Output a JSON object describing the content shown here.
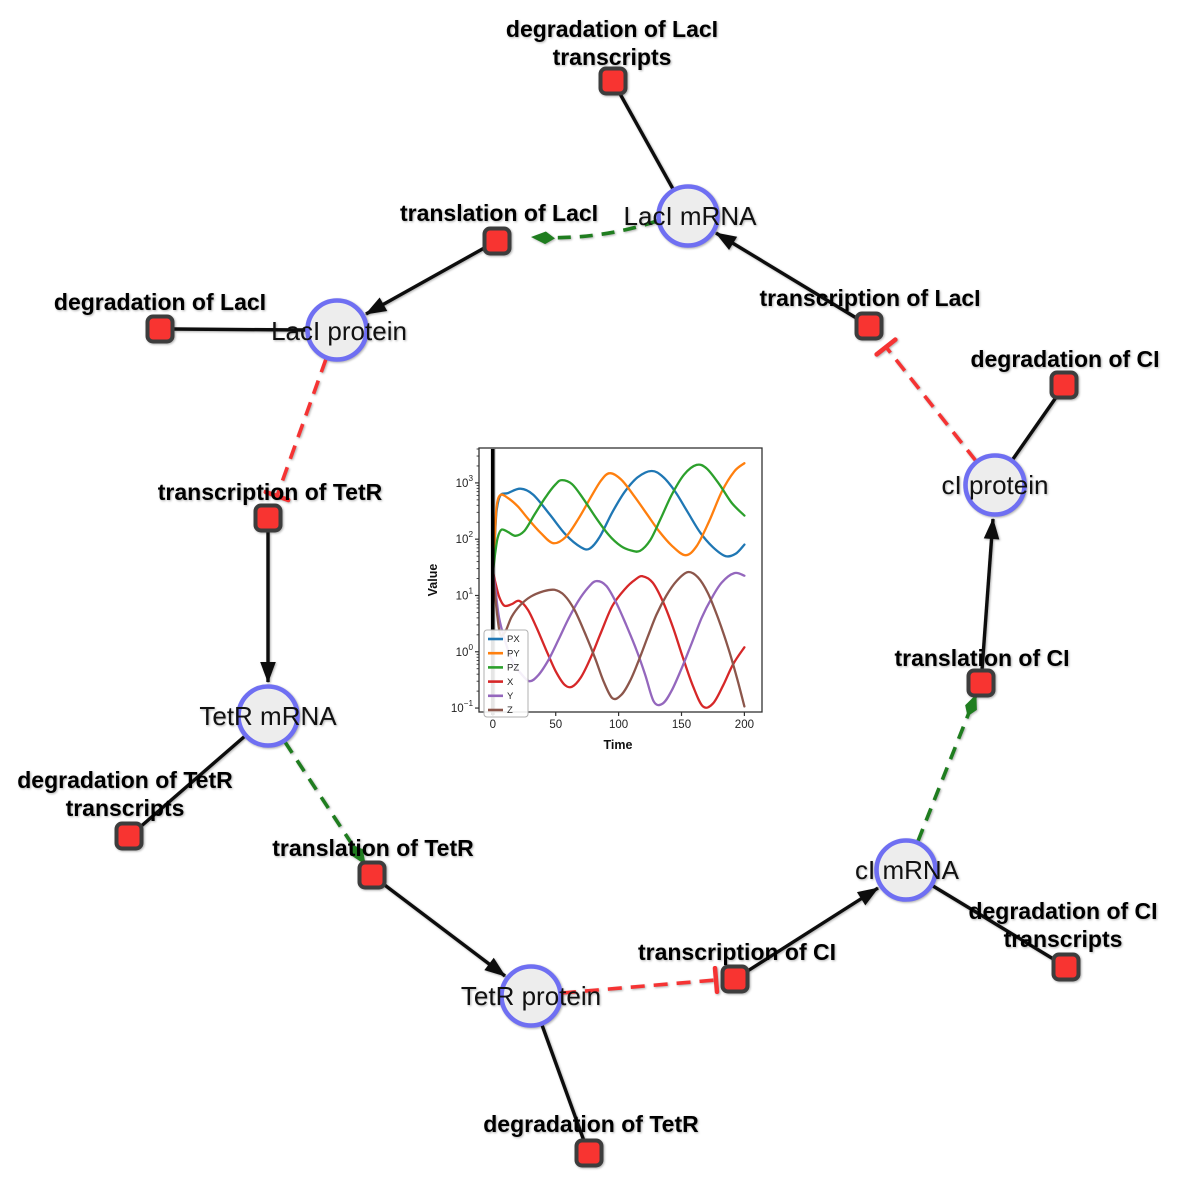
{
  "colors": {
    "background": "#ffffff",
    "species_fill": "#ededed",
    "species_stroke": "#6f6ff2",
    "reaction_fill": "#f83431",
    "reaction_stroke": "#3d3d3d",
    "edge_black": "#0d0d0d",
    "edge_modifier_green": "#1f7d1f",
    "edge_inhibition_red": "#f53333"
  },
  "network": {
    "species": [
      {
        "id": "laci-mrna",
        "label": "LacI mRNA"
      },
      {
        "id": "laci-protein",
        "label": "LacI protein"
      },
      {
        "id": "ci-protein",
        "label": "cI protein"
      },
      {
        "id": "tetr-mrna",
        "label": "TetR mRNA"
      },
      {
        "id": "ci-mrna",
        "label": "cI mRNA"
      },
      {
        "id": "tetr-protein",
        "label": "TetR protein"
      }
    ],
    "reactions": [
      {
        "id": "degradation-laci-transcripts",
        "line1": "degradation of LacI",
        "line2": "transcripts"
      },
      {
        "id": "translation-laci",
        "label": "translation of LacI"
      },
      {
        "id": "degradation-laci",
        "label": "degradation of LacI"
      },
      {
        "id": "transcription-laci",
        "label": "transcription of LacI"
      },
      {
        "id": "degradation-ci",
        "label": "degradation of CI"
      },
      {
        "id": "transcription-tetr",
        "label": "transcription of TetR"
      },
      {
        "id": "translation-ci",
        "label": "translation of CI"
      },
      {
        "id": "degradation-tetr-transcripts",
        "line1": "degradation of TetR",
        "line2": "transcripts"
      },
      {
        "id": "translation-tetr",
        "label": "translation of TetR"
      },
      {
        "id": "transcription-ci",
        "label": "transcription of CI"
      },
      {
        "id": "degradation-ci-transcripts",
        "line1": "degradation of CI",
        "line2": "transcripts"
      },
      {
        "id": "degradation-tetr",
        "label": "degradation of TetR"
      }
    ],
    "edges": [
      {
        "from": "LacI mRNA",
        "to": "degradation of LacI transcripts",
        "type": "consumption",
        "style": "black-solid"
      },
      {
        "from": "transcription of LacI",
        "to": "LacI mRNA",
        "type": "production",
        "style": "black-arrow"
      },
      {
        "from": "LacI mRNA",
        "to": "translation of LacI",
        "type": "modifier",
        "style": "green-dashed-diamond"
      },
      {
        "from": "translation of LacI",
        "to": "LacI protein",
        "type": "production",
        "style": "black-arrow"
      },
      {
        "from": "LacI protein",
        "to": "degradation of LacI",
        "type": "consumption",
        "style": "black-solid"
      },
      {
        "from": "LacI protein",
        "to": "transcription of TetR",
        "type": "inhibition",
        "style": "red-dashed-tee"
      },
      {
        "from": "transcription of TetR",
        "to": "TetR mRNA",
        "type": "production",
        "style": "black-arrow"
      },
      {
        "from": "TetR mRNA",
        "to": "degradation of TetR transcripts",
        "type": "consumption",
        "style": "black-solid"
      },
      {
        "from": "TetR mRNA",
        "to": "translation of TetR",
        "type": "modifier",
        "style": "green-dashed-diamond"
      },
      {
        "from": "translation of TetR",
        "to": "TetR protein",
        "type": "production",
        "style": "black-arrow"
      },
      {
        "from": "TetR protein",
        "to": "degradation of TetR",
        "type": "consumption",
        "style": "black-solid"
      },
      {
        "from": "TetR protein",
        "to": "transcription of CI",
        "type": "inhibition",
        "style": "red-dashed-tee"
      },
      {
        "from": "transcription of CI",
        "to": "cI mRNA",
        "type": "production",
        "style": "black-arrow"
      },
      {
        "from": "cI mRNA",
        "to": "degradation of CI transcripts",
        "type": "consumption",
        "style": "black-solid"
      },
      {
        "from": "cI mRNA",
        "to": "translation of CI",
        "type": "modifier",
        "style": "green-dashed-diamond"
      },
      {
        "from": "translation of CI",
        "to": "cI protein",
        "type": "production",
        "style": "black-arrow"
      },
      {
        "from": "cI protein",
        "to": "degradation of CI",
        "type": "consumption",
        "style": "black-solid"
      },
      {
        "from": "cI protein",
        "to": "transcription of LacI",
        "type": "inhibition",
        "style": "red-dashed-tee"
      }
    ]
  },
  "chart_data": {
    "type": "line",
    "title": "",
    "xlabel": "Time",
    "ylabel": "Value",
    "yscale": "log",
    "x_ticks": [
      0,
      50,
      100,
      150,
      200
    ],
    "y_tick_exponents": [
      3,
      2,
      1,
      0,
      -1
    ],
    "xlim": [
      -11,
      214
    ],
    "ylim_log10": [
      -1.07,
      3.62
    ],
    "grid": false,
    "legend_position": "lower-left",
    "event_line_x": 0,
    "event_band": [
      -2,
      2.5
    ],
    "series": [
      {
        "name": "PX",
        "color": "#1f77b4",
        "points": [
          [
            0,
            25
          ],
          [
            1.5,
            90
          ],
          [
            3,
            320
          ],
          [
            6,
            600
          ],
          [
            12,
            660
          ],
          [
            22,
            790
          ],
          [
            32,
            620
          ],
          [
            45,
            280
          ],
          [
            58,
            120
          ],
          [
            70,
            72
          ],
          [
            77,
            68
          ],
          [
            85,
            110
          ],
          [
            95,
            300
          ],
          [
            105,
            700
          ],
          [
            115,
            1250
          ],
          [
            126,
            1630
          ],
          [
            135,
            1300
          ],
          [
            145,
            700
          ],
          [
            155,
            300
          ],
          [
            165,
            130
          ],
          [
            175,
            72
          ],
          [
            185,
            50
          ],
          [
            193,
            55
          ],
          [
            200,
            80
          ]
        ]
      },
      {
        "name": "PY",
        "color": "#ff7f0e",
        "points": [
          [
            0,
            25
          ],
          [
            1.5,
            100
          ],
          [
            3,
            380
          ],
          [
            6,
            610
          ],
          [
            12,
            540
          ],
          [
            20,
            380
          ],
          [
            28,
            230
          ],
          [
            38,
            130
          ],
          [
            48,
            85
          ],
          [
            58,
            110
          ],
          [
            68,
            230
          ],
          [
            78,
            560
          ],
          [
            86,
            1100
          ],
          [
            93,
            1490
          ],
          [
            102,
            1150
          ],
          [
            112,
            600
          ],
          [
            122,
            290
          ],
          [
            132,
            140
          ],
          [
            142,
            78
          ],
          [
            153,
            52
          ],
          [
            162,
            75
          ],
          [
            172,
            210
          ],
          [
            182,
            700
          ],
          [
            192,
            1600
          ],
          [
            200,
            2240
          ]
        ]
      },
      {
        "name": "PZ",
        "color": "#2ca02c",
        "points": [
          [
            0,
            25
          ],
          [
            2,
            60
          ],
          [
            4,
            110
          ],
          [
            7,
            148
          ],
          [
            12,
            135
          ],
          [
            18,
            115
          ],
          [
            25,
            140
          ],
          [
            33,
            270
          ],
          [
            42,
            560
          ],
          [
            50,
            950
          ],
          [
            55,
            1120
          ],
          [
            63,
            950
          ],
          [
            72,
            520
          ],
          [
            82,
            240
          ],
          [
            92,
            120
          ],
          [
            102,
            75
          ],
          [
            110,
            63
          ],
          [
            117,
            62
          ],
          [
            125,
            95
          ],
          [
            133,
            220
          ],
          [
            142,
            600
          ],
          [
            152,
            1400
          ],
          [
            162,
            2090
          ],
          [
            170,
            1800
          ],
          [
            180,
            950
          ],
          [
            190,
            440
          ],
          [
            200,
            263
          ]
        ]
      },
      {
        "name": "X",
        "color": "#d62728",
        "points": [
          [
            0,
            27
          ],
          [
            2,
            17
          ],
          [
            5,
            9.5
          ],
          [
            9,
            6.6
          ],
          [
            15,
            7
          ],
          [
            21,
            8
          ],
          [
            28,
            5.5
          ],
          [
            35,
            2.6
          ],
          [
            43,
            1.0
          ],
          [
            50,
            0.45
          ],
          [
            57,
            0.26
          ],
          [
            63,
            0.24
          ],
          [
            70,
            0.35
          ],
          [
            78,
            0.8
          ],
          [
            86,
            2.2
          ],
          [
            95,
            6.5
          ],
          [
            105,
            13
          ],
          [
            113,
            19
          ],
          [
            119,
            22
          ],
          [
            127,
            17
          ],
          [
            135,
            8
          ],
          [
            143,
            2.8
          ],
          [
            151,
            0.8
          ],
          [
            159,
            0.25
          ],
          [
            167,
            0.107
          ],
          [
            175,
            0.12
          ],
          [
            183,
            0.25
          ],
          [
            191,
            0.6
          ],
          [
            200,
            1.2
          ]
        ]
      },
      {
        "name": "Y",
        "color": "#9467bd",
        "points": [
          [
            0,
            27
          ],
          [
            2,
            13
          ],
          [
            5,
            4
          ],
          [
            10,
            1.5
          ],
          [
            16,
            0.65
          ],
          [
            22,
            0.42
          ],
          [
            29,
            0.3
          ],
          [
            36,
            0.38
          ],
          [
            44,
            0.7
          ],
          [
            52,
            1.6
          ],
          [
            60,
            3.8
          ],
          [
            68,
            8
          ],
          [
            76,
            14
          ],
          [
            82,
            18
          ],
          [
            90,
            15
          ],
          [
            98,
            7.5
          ],
          [
            106,
            3
          ],
          [
            114,
            1.1
          ],
          [
            121,
            0.4
          ],
          [
            128,
            0.13
          ],
          [
            135,
            0.12
          ],
          [
            142,
            0.2
          ],
          [
            150,
            0.5
          ],
          [
            158,
            1.4
          ],
          [
            166,
            4
          ],
          [
            174,
            9
          ],
          [
            182,
            17
          ],
          [
            192,
            25
          ],
          [
            200,
            22.5
          ]
        ]
      },
      {
        "name": "Z",
        "color": "#8c564b",
        "points": [
          [
            0,
            27
          ],
          [
            1.5,
            12
          ],
          [
            3.5,
            4.5
          ],
          [
            6,
            2.0
          ],
          [
            10,
            2.3
          ],
          [
            15,
            4.2
          ],
          [
            22,
            6.8
          ],
          [
            30,
            9.5
          ],
          [
            40,
            11.8
          ],
          [
            49,
            12.6
          ],
          [
            57,
            10
          ],
          [
            65,
            5.5
          ],
          [
            73,
            2.2
          ],
          [
            81,
            0.8
          ],
          [
            88,
            0.3
          ],
          [
            95,
            0.15
          ],
          [
            102,
            0.17
          ],
          [
            109,
            0.3
          ],
          [
            116,
            0.7
          ],
          [
            123,
            1.8
          ],
          [
            130,
            4.5
          ],
          [
            138,
            10
          ],
          [
            146,
            18
          ],
          [
            155,
            26
          ],
          [
            163,
            21
          ],
          [
            171,
            11
          ],
          [
            179,
            4
          ],
          [
            187,
            1.2
          ],
          [
            194,
            0.35
          ],
          [
            200,
            0.107
          ]
        ]
      }
    ]
  }
}
